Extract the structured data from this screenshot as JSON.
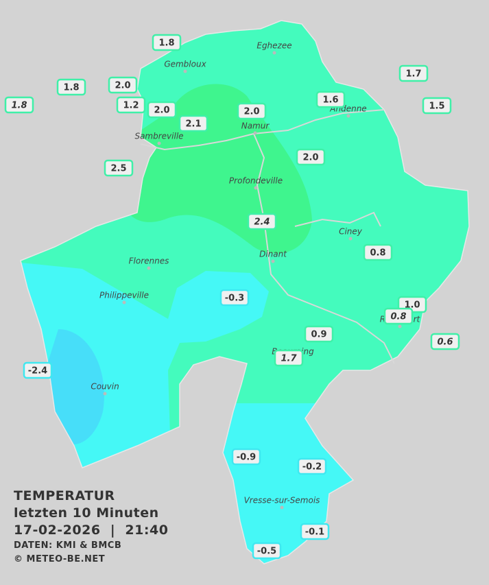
{
  "map": {
    "title": "TEMPERATUR",
    "subtitle": "letzten 10 Minuten",
    "timestamp": "17-02-2026  |  21:40",
    "source": "DATEN: KMI & BMCB",
    "copyright": "© METEO-BE.NET",
    "cities": [
      "Eghezee",
      "Gembloux",
      "Andenne",
      "Namur",
      "Sambreville",
      "Profondeville",
      "Ciney",
      "Dinant",
      "Florennes",
      "Philippeville",
      "Rochefort",
      "Beauraing",
      "Couvin",
      "Vresse-sur-Semois"
    ],
    "stations": [
      "1.8",
      "1.8",
      "1.8",
      "2.0",
      "1.2",
      "2.0",
      "2.1",
      "2.0",
      "1.6",
      "1.7",
      "1.5",
      "2.5",
      "2.0",
      "2.4",
      "0.8",
      "-0.3",
      "1.0",
      "0.8",
      "0.9",
      "0.6",
      "1.7",
      "-2.4",
      "-0.9",
      "-0.2",
      "-0.1",
      "-0.5"
    ]
  }
}
